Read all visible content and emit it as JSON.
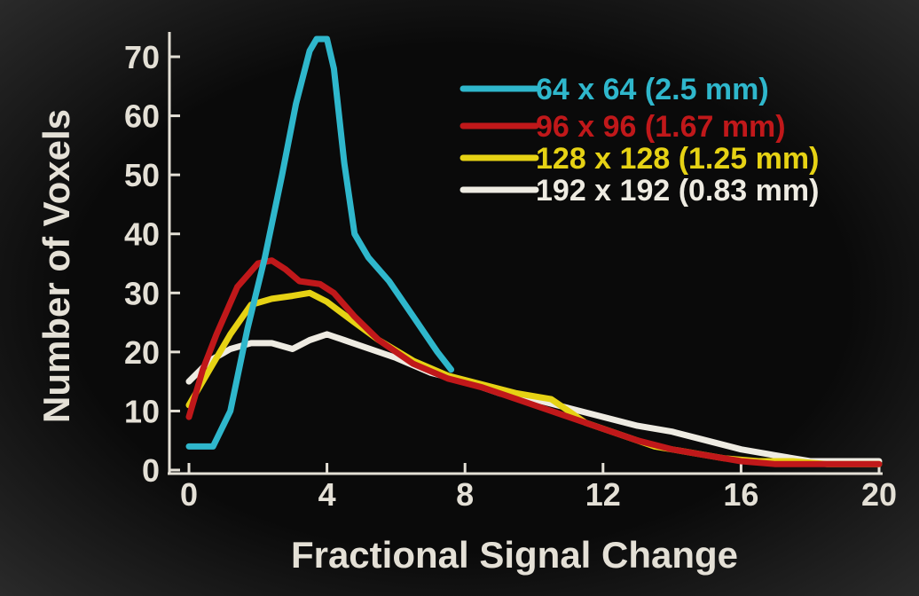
{
  "chart_data": {
    "type": "line",
    "title": "",
    "xlabel": "Fractional Signal Change",
    "ylabel": "Number of Voxels",
    "xlim": [
      0,
      20
    ],
    "ylim": [
      0,
      70
    ],
    "xticks": [
      "0",
      "4",
      "8",
      "12",
      "16",
      "20"
    ],
    "yticks": [
      "0",
      "10",
      "20",
      "30",
      "40",
      "50",
      "60",
      "70"
    ],
    "grid": false,
    "legend_position": "top-right",
    "series": [
      {
        "name": "64 x 64 (2.5 mm)",
        "color": "#2fb7cc",
        "x": [
          0,
          0.7,
          1.2,
          1.7,
          2.2,
          2.7,
          3.1,
          3.5,
          3.7,
          4.0,
          4.2,
          4.5,
          4.8,
          5.2,
          5.8,
          6.5,
          7.2,
          7.6
        ],
        "y": [
          4,
          4,
          10,
          24,
          36,
          50,
          62,
          71,
          73,
          73,
          68,
          52,
          40,
          36,
          32,
          26,
          20,
          17
        ]
      },
      {
        "name": "96 x 96 (1.67 mm)",
        "color": "#c0181a",
        "x": [
          0,
          0.4,
          0.8,
          1.4,
          2.0,
          2.4,
          2.8,
          3.2,
          3.8,
          4.2,
          4.8,
          5.5,
          6.5,
          7.5,
          8.5,
          9.5,
          10.5,
          12,
          13,
          14,
          15,
          16,
          17,
          18,
          19,
          20
        ],
        "y": [
          9,
          17,
          23,
          31,
          35,
          35.5,
          34,
          32,
          31.5,
          30,
          26,
          22,
          18,
          15.5,
          14,
          12,
          10,
          7,
          5,
          3.5,
          2.5,
          1.5,
          1,
          1,
          1,
          1
        ]
      },
      {
        "name": "128 x 128 (1.25 mm)",
        "color": "#e6d214",
        "x": [
          0,
          0.6,
          1.2,
          1.8,
          2.4,
          3.0,
          3.5,
          4.0,
          4.8,
          5.5,
          6.5,
          7.5,
          8.5,
          9.5,
          10.5,
          11.5,
          12.5,
          13.5,
          14.5,
          15.5,
          16.5,
          17.5,
          18.5,
          19.5,
          20
        ],
        "y": [
          11,
          17,
          23,
          28,
          29,
          29.5,
          30,
          28.5,
          25,
          22,
          18.5,
          16,
          14.5,
          13,
          12,
          8,
          6,
          4,
          3,
          2,
          1.5,
          1.5,
          1,
          1,
          1
        ]
      },
      {
        "name": "192 x 192 (0.83 mm)",
        "color": "#eeebe2",
        "x": [
          0,
          0.6,
          1.2,
          1.8,
          2.4,
          3.0,
          3.5,
          4.0,
          4.5,
          5.0,
          6.0,
          7.0,
          8.0,
          9.0,
          10.0,
          11.0,
          12.0,
          13.0,
          14.0,
          15.0,
          16.0,
          17.0,
          18.0,
          19.0,
          20
        ],
        "y": [
          15,
          18.5,
          20.5,
          21.5,
          21.5,
          20.5,
          22,
          23,
          22,
          21,
          19,
          16.5,
          15,
          13,
          12,
          10.5,
          9,
          7.5,
          6.5,
          5,
          3.5,
          2.5,
          1.5,
          1.5,
          1.5
        ]
      }
    ]
  }
}
